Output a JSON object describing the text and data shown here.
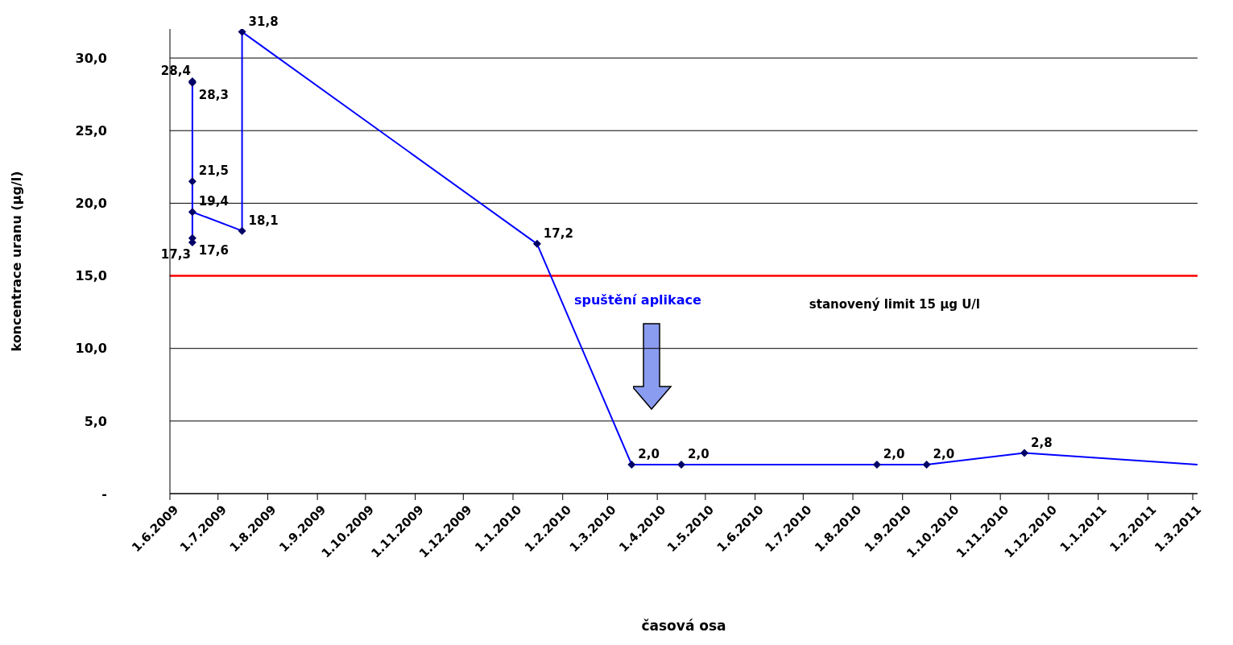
{
  "chart_data": {
    "type": "line",
    "xlabel": "časová osa",
    "ylabel": "koncentrace uranu (µg/l)",
    "x": [
      "2009-06-15",
      "2009-06-15",
      "2009-06-15",
      "2009-06-15",
      "2009-06-15",
      "2009-06-15",
      "2009-07-16",
      "2009-07-16",
      "2010-01-16",
      "2010-03-16",
      "2010-04-16",
      "2010-08-16",
      "2010-09-16",
      "2010-11-16",
      "2011-03-04"
    ],
    "series": [
      {
        "color": "#0000ff",
        "values": [
          17.3,
          17.6,
          28.4,
          28.3,
          21.5,
          19.4,
          18.1,
          31.8,
          17.2,
          2.0,
          2.0,
          2.0,
          2.0,
          2.8,
          2.0
        ],
        "value_labels": [
          "17,3",
          "17,6",
          "28,4",
          "28,3",
          "21,5",
          "19,4",
          "18,1",
          "31,8",
          "17,2",
          "2,0",
          "2,0",
          "2,0",
          "2,0",
          "2,8",
          null
        ]
      }
    ],
    "marker": "diamond",
    "line_style": "solid",
    "grid": "y",
    "xlim": [
      "2009-06-01",
      "2011-03-04"
    ],
    "xticks": [
      {
        "value": "2009-06-01",
        "label": "1.6.2009"
      },
      {
        "value": "2009-07-01",
        "label": "1.7.2009"
      },
      {
        "value": "2009-08-01",
        "label": "1.8.2009"
      },
      {
        "value": "2009-09-01",
        "label": "1.9.2009"
      },
      {
        "value": "2009-10-01",
        "label": "1.10.2009"
      },
      {
        "value": "2009-11-01",
        "label": "1.11.2009"
      },
      {
        "value": "2009-12-01",
        "label": "1.12.2009"
      },
      {
        "value": "2010-01-01",
        "label": "1.1.2010"
      },
      {
        "value": "2010-02-01",
        "label": "1.2.2010"
      },
      {
        "value": "2010-03-01",
        "label": "1.3.2010"
      },
      {
        "value": "2010-04-01",
        "label": "1.4.2010"
      },
      {
        "value": "2010-05-01",
        "label": "1.5.2010"
      },
      {
        "value": "2010-06-01",
        "label": "1.6.2010"
      },
      {
        "value": "2010-07-01",
        "label": "1.7.2010"
      },
      {
        "value": "2010-08-01",
        "label": "1.8.2010"
      },
      {
        "value": "2010-09-01",
        "label": "1.9.2010"
      },
      {
        "value": "2010-10-01",
        "label": "1.10.2010"
      },
      {
        "value": "2010-11-01",
        "label": "1.11.2010"
      },
      {
        "value": "2010-12-01",
        "label": "1.12.2010"
      },
      {
        "value": "2011-01-01",
        "label": "1.1.2011"
      },
      {
        "value": "2011-02-01",
        "label": "1.2.2011"
      },
      {
        "value": "2011-03-01",
        "label": "1.3.2011"
      }
    ],
    "ylim": [
      0,
      32
    ],
    "yticks": [
      {
        "value": 0,
        "label": "-"
      },
      {
        "value": 5,
        "label": "5,0"
      },
      {
        "value": 10,
        "label": "10,0"
      },
      {
        "value": 15,
        "label": "15,0"
      },
      {
        "value": 20,
        "label": "20,0"
      },
      {
        "value": 25,
        "label": "25,0"
      },
      {
        "value": 30,
        "label": "30,0"
      }
    ],
    "ref_lines": [
      {
        "axis": "y",
        "value": 15,
        "label": "stanovený limit 15 µg U/l",
        "color": "#ff0000"
      }
    ],
    "annotations": [
      "spuštění aplikace"
    ]
  }
}
